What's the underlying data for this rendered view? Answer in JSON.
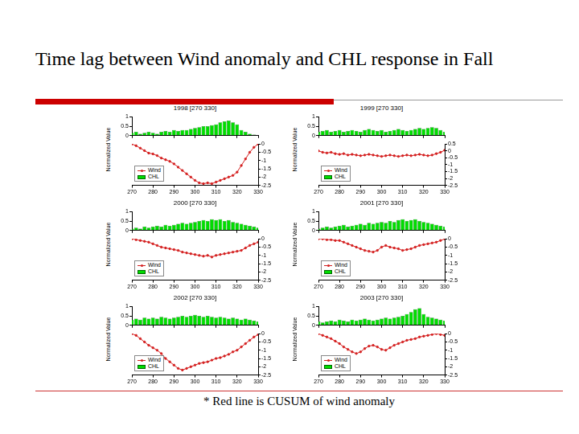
{
  "title": "Time lag between Wind anomaly and CHL response in Fall",
  "footnote": "* Red line is CUSUM of wind anomaly",
  "chart_data": [
    {
      "type": "bar",
      "title": "1998 [270 330]",
      "ylabel": "Normalized Value",
      "legend": "lower left",
      "grid": false,
      "x": [
        270,
        272,
        274,
        276,
        278,
        280,
        282,
        284,
        286,
        288,
        290,
        292,
        294,
        296,
        298,
        300,
        302,
        304,
        306,
        308,
        310,
        312,
        314,
        316,
        318,
        320,
        322,
        324,
        326,
        328,
        330
      ],
      "xlim": [
        270,
        330
      ],
      "xticks": [
        270,
        280,
        290,
        300,
        310,
        320,
        330
      ],
      "ylim": [
        0,
        1
      ],
      "yticks": [
        0,
        0.5,
        1
      ],
      "y2lim": [
        -2.5,
        0
      ],
      "y2ticks": [
        -2.5,
        -2,
        -1.5,
        -1,
        -0.5,
        0
      ],
      "series": [
        {
          "name": "Wind",
          "type": "line",
          "axis": "y2",
          "color": "#d42020",
          "marker": "circle",
          "line_style": "solid",
          "values": [
            0,
            -0.1,
            -0.25,
            -0.4,
            -0.55,
            -0.6,
            -0.7,
            -0.85,
            -0.95,
            -1.05,
            -1.2,
            -1.4,
            -1.6,
            -1.8,
            -2.0,
            -2.2,
            -2.35,
            -2.4,
            -2.35,
            -2.4,
            -2.3,
            -2.2,
            -2.1,
            -2.0,
            -1.9,
            -1.7,
            -1.3,
            -0.9,
            -0.5,
            -0.2,
            0
          ]
        },
        {
          "name": "CHL",
          "type": "bar",
          "color": "#00dd00",
          "values": [
            0.15,
            0.2,
            0.1,
            0.15,
            0.2,
            0.15,
            0.1,
            0.2,
            0.25,
            0.2,
            0.3,
            0.25,
            0.3,
            0.3,
            0.35,
            0.4,
            0.45,
            0.5,
            0.5,
            0.55,
            0.6,
            0.7,
            0.75,
            0.8,
            0.7,
            0.6,
            0.3,
            0.2,
            0.1,
            0.05,
            0
          ]
        }
      ]
    },
    {
      "type": "bar",
      "title": "1999 [270 330]",
      "ylabel": "Normalized Value",
      "legend": "lower left",
      "grid": false,
      "x": [
        270,
        272,
        274,
        276,
        278,
        280,
        282,
        284,
        286,
        288,
        290,
        292,
        294,
        296,
        298,
        300,
        302,
        304,
        306,
        308,
        310,
        312,
        314,
        316,
        318,
        320,
        322,
        324,
        326,
        328,
        330
      ],
      "xlim": [
        270,
        330
      ],
      "xticks": [
        270,
        280,
        290,
        300,
        310,
        320,
        330
      ],
      "ylim": [
        0,
        1
      ],
      "yticks": [
        0,
        0.5,
        1
      ],
      "y2lim": [
        -2.5,
        0.5
      ],
      "y2ticks": [
        -2.5,
        -2,
        -1.5,
        -1,
        -0.5,
        0,
        0.5
      ],
      "series": [
        {
          "name": "Wind",
          "type": "line",
          "axis": "y2",
          "color": "#d42020",
          "marker": "circle",
          "line_style": "solid",
          "values": [
            0,
            -0.1,
            -0.15,
            -0.1,
            -0.2,
            -0.25,
            -0.2,
            -0.3,
            -0.25,
            -0.3,
            -0.35,
            -0.3,
            -0.25,
            -0.3,
            -0.35,
            -0.4,
            -0.35,
            -0.3,
            -0.35,
            -0.4,
            -0.35,
            -0.3,
            -0.35,
            -0.3,
            -0.25,
            -0.3,
            -0.35,
            -0.3,
            -0.2,
            -0.1,
            0.05
          ]
        },
        {
          "name": "CHL",
          "type": "bar",
          "color": "#00dd00",
          "values": [
            0.2,
            0.25,
            0.3,
            0.2,
            0.25,
            0.3,
            0.2,
            0.25,
            0.3,
            0.25,
            0.2,
            0.3,
            0.35,
            0.3,
            0.25,
            0.3,
            0.2,
            0.25,
            0.3,
            0.35,
            0.3,
            0.25,
            0.3,
            0.35,
            0.4,
            0.35,
            0.4,
            0.45,
            0.4,
            0.3,
            0.2
          ]
        }
      ]
    },
    {
      "type": "bar",
      "title": "2000 [270 330]",
      "ylabel": "Normalized Value",
      "legend": "lower left",
      "grid": false,
      "x": [
        270,
        272,
        274,
        276,
        278,
        280,
        282,
        284,
        286,
        288,
        290,
        292,
        294,
        296,
        298,
        300,
        302,
        304,
        306,
        308,
        310,
        312,
        314,
        316,
        318,
        320,
        322,
        324,
        326,
        328,
        330
      ],
      "xlim": [
        270,
        330
      ],
      "xticks": [
        270,
        280,
        290,
        300,
        310,
        320,
        330
      ],
      "ylim": [
        0,
        1
      ],
      "yticks": [
        0,
        0.5,
        1
      ],
      "y2lim": [
        -2.5,
        0
      ],
      "y2ticks": [
        -2.5,
        -2,
        -1.5,
        -1,
        -0.5,
        0
      ],
      "series": [
        {
          "name": "Wind",
          "type": "line",
          "axis": "y2",
          "color": "#d42020",
          "marker": "circle",
          "line_style": "solid",
          "values": [
            0,
            -0.05,
            -0.1,
            -0.15,
            -0.2,
            -0.3,
            -0.4,
            -0.5,
            -0.55,
            -0.6,
            -0.65,
            -0.7,
            -0.8,
            -0.85,
            -0.9,
            -0.95,
            -1.0,
            -1.05,
            -1.0,
            -1.1,
            -1.0,
            -0.95,
            -0.9,
            -0.85,
            -0.8,
            -0.75,
            -0.7,
            -0.55,
            -0.4,
            -0.3,
            -0.2
          ]
        },
        {
          "name": "CHL",
          "type": "bar",
          "color": "#00dd00",
          "values": [
            0.1,
            0.15,
            0.1,
            0.2,
            0.15,
            0.2,
            0.25,
            0.2,
            0.3,
            0.25,
            0.3,
            0.35,
            0.4,
            0.35,
            0.4,
            0.45,
            0.5,
            0.55,
            0.5,
            0.6,
            0.55,
            0.6,
            0.5,
            0.55,
            0.45,
            0.4,
            0.35,
            0.3,
            0.25,
            0.2,
            0.15
          ]
        }
      ]
    },
    {
      "type": "bar",
      "title": "2001 [270 330]",
      "ylabel": "Normalized Value",
      "legend": "lower left",
      "grid": false,
      "x": [
        270,
        272,
        274,
        276,
        278,
        280,
        282,
        284,
        286,
        288,
        290,
        292,
        294,
        296,
        298,
        300,
        302,
        304,
        306,
        308,
        310,
        312,
        314,
        316,
        318,
        320,
        322,
        324,
        326,
        328,
        330
      ],
      "xlim": [
        270,
        330
      ],
      "xticks": [
        270,
        280,
        290,
        300,
        310,
        320,
        330
      ],
      "ylim": [
        0,
        1
      ],
      "yticks": [
        0,
        0.5,
        1
      ],
      "y2lim": [
        -2.5,
        0
      ],
      "y2ticks": [
        -2.5,
        -2,
        -1.5,
        -1,
        -0.5,
        0
      ],
      "series": [
        {
          "name": "Wind",
          "type": "line",
          "axis": "y2",
          "color": "#d42020",
          "marker": "circle",
          "line_style": "solid",
          "values": [
            0,
            0,
            -0.05,
            -0.05,
            -0.1,
            -0.1,
            -0.2,
            -0.3,
            -0.4,
            -0.5,
            -0.6,
            -0.7,
            -0.75,
            -0.8,
            -0.7,
            -0.5,
            -0.4,
            -0.5,
            -0.55,
            -0.6,
            -0.7,
            -0.65,
            -0.6,
            -0.5,
            -0.4,
            -0.35,
            -0.3,
            -0.25,
            -0.2,
            -0.1,
            0
          ]
        },
        {
          "name": "CHL",
          "type": "bar",
          "color": "#00dd00",
          "values": [
            0.1,
            0.15,
            0.2,
            0.15,
            0.2,
            0.25,
            0.3,
            0.2,
            0.25,
            0.3,
            0.35,
            0.3,
            0.4,
            0.35,
            0.4,
            0.45,
            0.4,
            0.5,
            0.45,
            0.55,
            0.6,
            0.5,
            0.55,
            0.6,
            0.5,
            0.45,
            0.4,
            0.35,
            0.3,
            0.25,
            0.2
          ]
        }
      ]
    },
    {
      "type": "bar",
      "title": "2002 [270 330]",
      "ylabel": "Normalized Value",
      "legend": "lower left",
      "grid": false,
      "x": [
        270,
        272,
        274,
        276,
        278,
        280,
        282,
        284,
        286,
        288,
        290,
        292,
        294,
        296,
        298,
        300,
        302,
        304,
        306,
        308,
        310,
        312,
        314,
        316,
        318,
        320,
        322,
        324,
        326,
        328,
        330
      ],
      "xlim": [
        270,
        330
      ],
      "xticks": [
        270,
        280,
        290,
        300,
        310,
        320,
        330
      ],
      "ylim": [
        0,
        1
      ],
      "yticks": [
        0,
        0.5,
        1
      ],
      "y2lim": [
        -2.5,
        0
      ],
      "y2ticks": [
        -2.5,
        -2,
        -1.5,
        -1,
        -0.5,
        0
      ],
      "series": [
        {
          "name": "Wind",
          "type": "line",
          "axis": "y2",
          "color": "#d42020",
          "marker": "circle",
          "line_style": "solid",
          "values": [
            0,
            -0.1,
            -0.3,
            -0.5,
            -0.7,
            -0.85,
            -1.0,
            -1.2,
            -1.5,
            -1.7,
            -1.9,
            -2.1,
            -2.2,
            -2.1,
            -2.0,
            -1.9,
            -1.8,
            -1.75,
            -1.7,
            -1.6,
            -1.5,
            -1.45,
            -1.35,
            -1.25,
            -1.1,
            -1.0,
            -0.8,
            -0.6,
            -0.4,
            -0.2,
            -0.05
          ]
        },
        {
          "name": "CHL",
          "type": "bar",
          "color": "#00dd00",
          "values": [
            0.3,
            0.35,
            0.3,
            0.4,
            0.35,
            0.4,
            0.35,
            0.45,
            0.4,
            0.35,
            0.4,
            0.45,
            0.5,
            0.45,
            0.5,
            0.55,
            0.5,
            0.45,
            0.5,
            0.45,
            0.4,
            0.45,
            0.4,
            0.35,
            0.4,
            0.35,
            0.3,
            0.35,
            0.3,
            0.25,
            0.2
          ]
        }
      ]
    },
    {
      "type": "bar",
      "title": "2003 [270 330]",
      "ylabel": "Normalized Value",
      "legend": "lower left",
      "grid": false,
      "x": [
        270,
        272,
        274,
        276,
        278,
        280,
        282,
        284,
        286,
        288,
        290,
        292,
        294,
        296,
        298,
        300,
        302,
        304,
        306,
        308,
        310,
        312,
        314,
        316,
        318,
        320,
        322,
        324,
        326,
        328,
        330
      ],
      "xlim": [
        270,
        330
      ],
      "xticks": [
        270,
        280,
        290,
        300,
        310,
        320,
        330
      ],
      "ylim": [
        0,
        1
      ],
      "yticks": [
        0,
        0.5,
        1
      ],
      "y2lim": [
        -2.5,
        0
      ],
      "y2ticks": [
        -2.5,
        -2,
        -1.5,
        -1,
        -0.5,
        0
      ],
      "series": [
        {
          "name": "Wind",
          "type": "line",
          "axis": "y2",
          "color": "#d42020",
          "marker": "circle",
          "line_style": "solid",
          "values": [
            0,
            -0.1,
            -0.2,
            -0.3,
            -0.45,
            -0.6,
            -0.8,
            -0.95,
            -1.1,
            -1.2,
            -1.1,
            -0.9,
            -0.75,
            -0.7,
            -0.8,
            -0.95,
            -1.0,
            -0.85,
            -0.7,
            -0.6,
            -0.5,
            -0.4,
            -0.35,
            -0.3,
            -0.2,
            -0.15,
            -0.1,
            -0.05,
            0,
            -0.05,
            -0.1
          ]
        },
        {
          "name": "CHL",
          "type": "bar",
          "color": "#00dd00",
          "values": [
            0.2,
            0.15,
            0.2,
            0.25,
            0.2,
            0.3,
            0.25,
            0.2,
            0.3,
            0.25,
            0.3,
            0.35,
            0.3,
            0.25,
            0.3,
            0.35,
            0.4,
            0.35,
            0.4,
            0.45,
            0.5,
            0.6,
            0.7,
            0.85,
            0.9,
            0.6,
            0.45,
            0.4,
            0.35,
            0.3,
            0.25
          ]
        }
      ]
    }
  ]
}
